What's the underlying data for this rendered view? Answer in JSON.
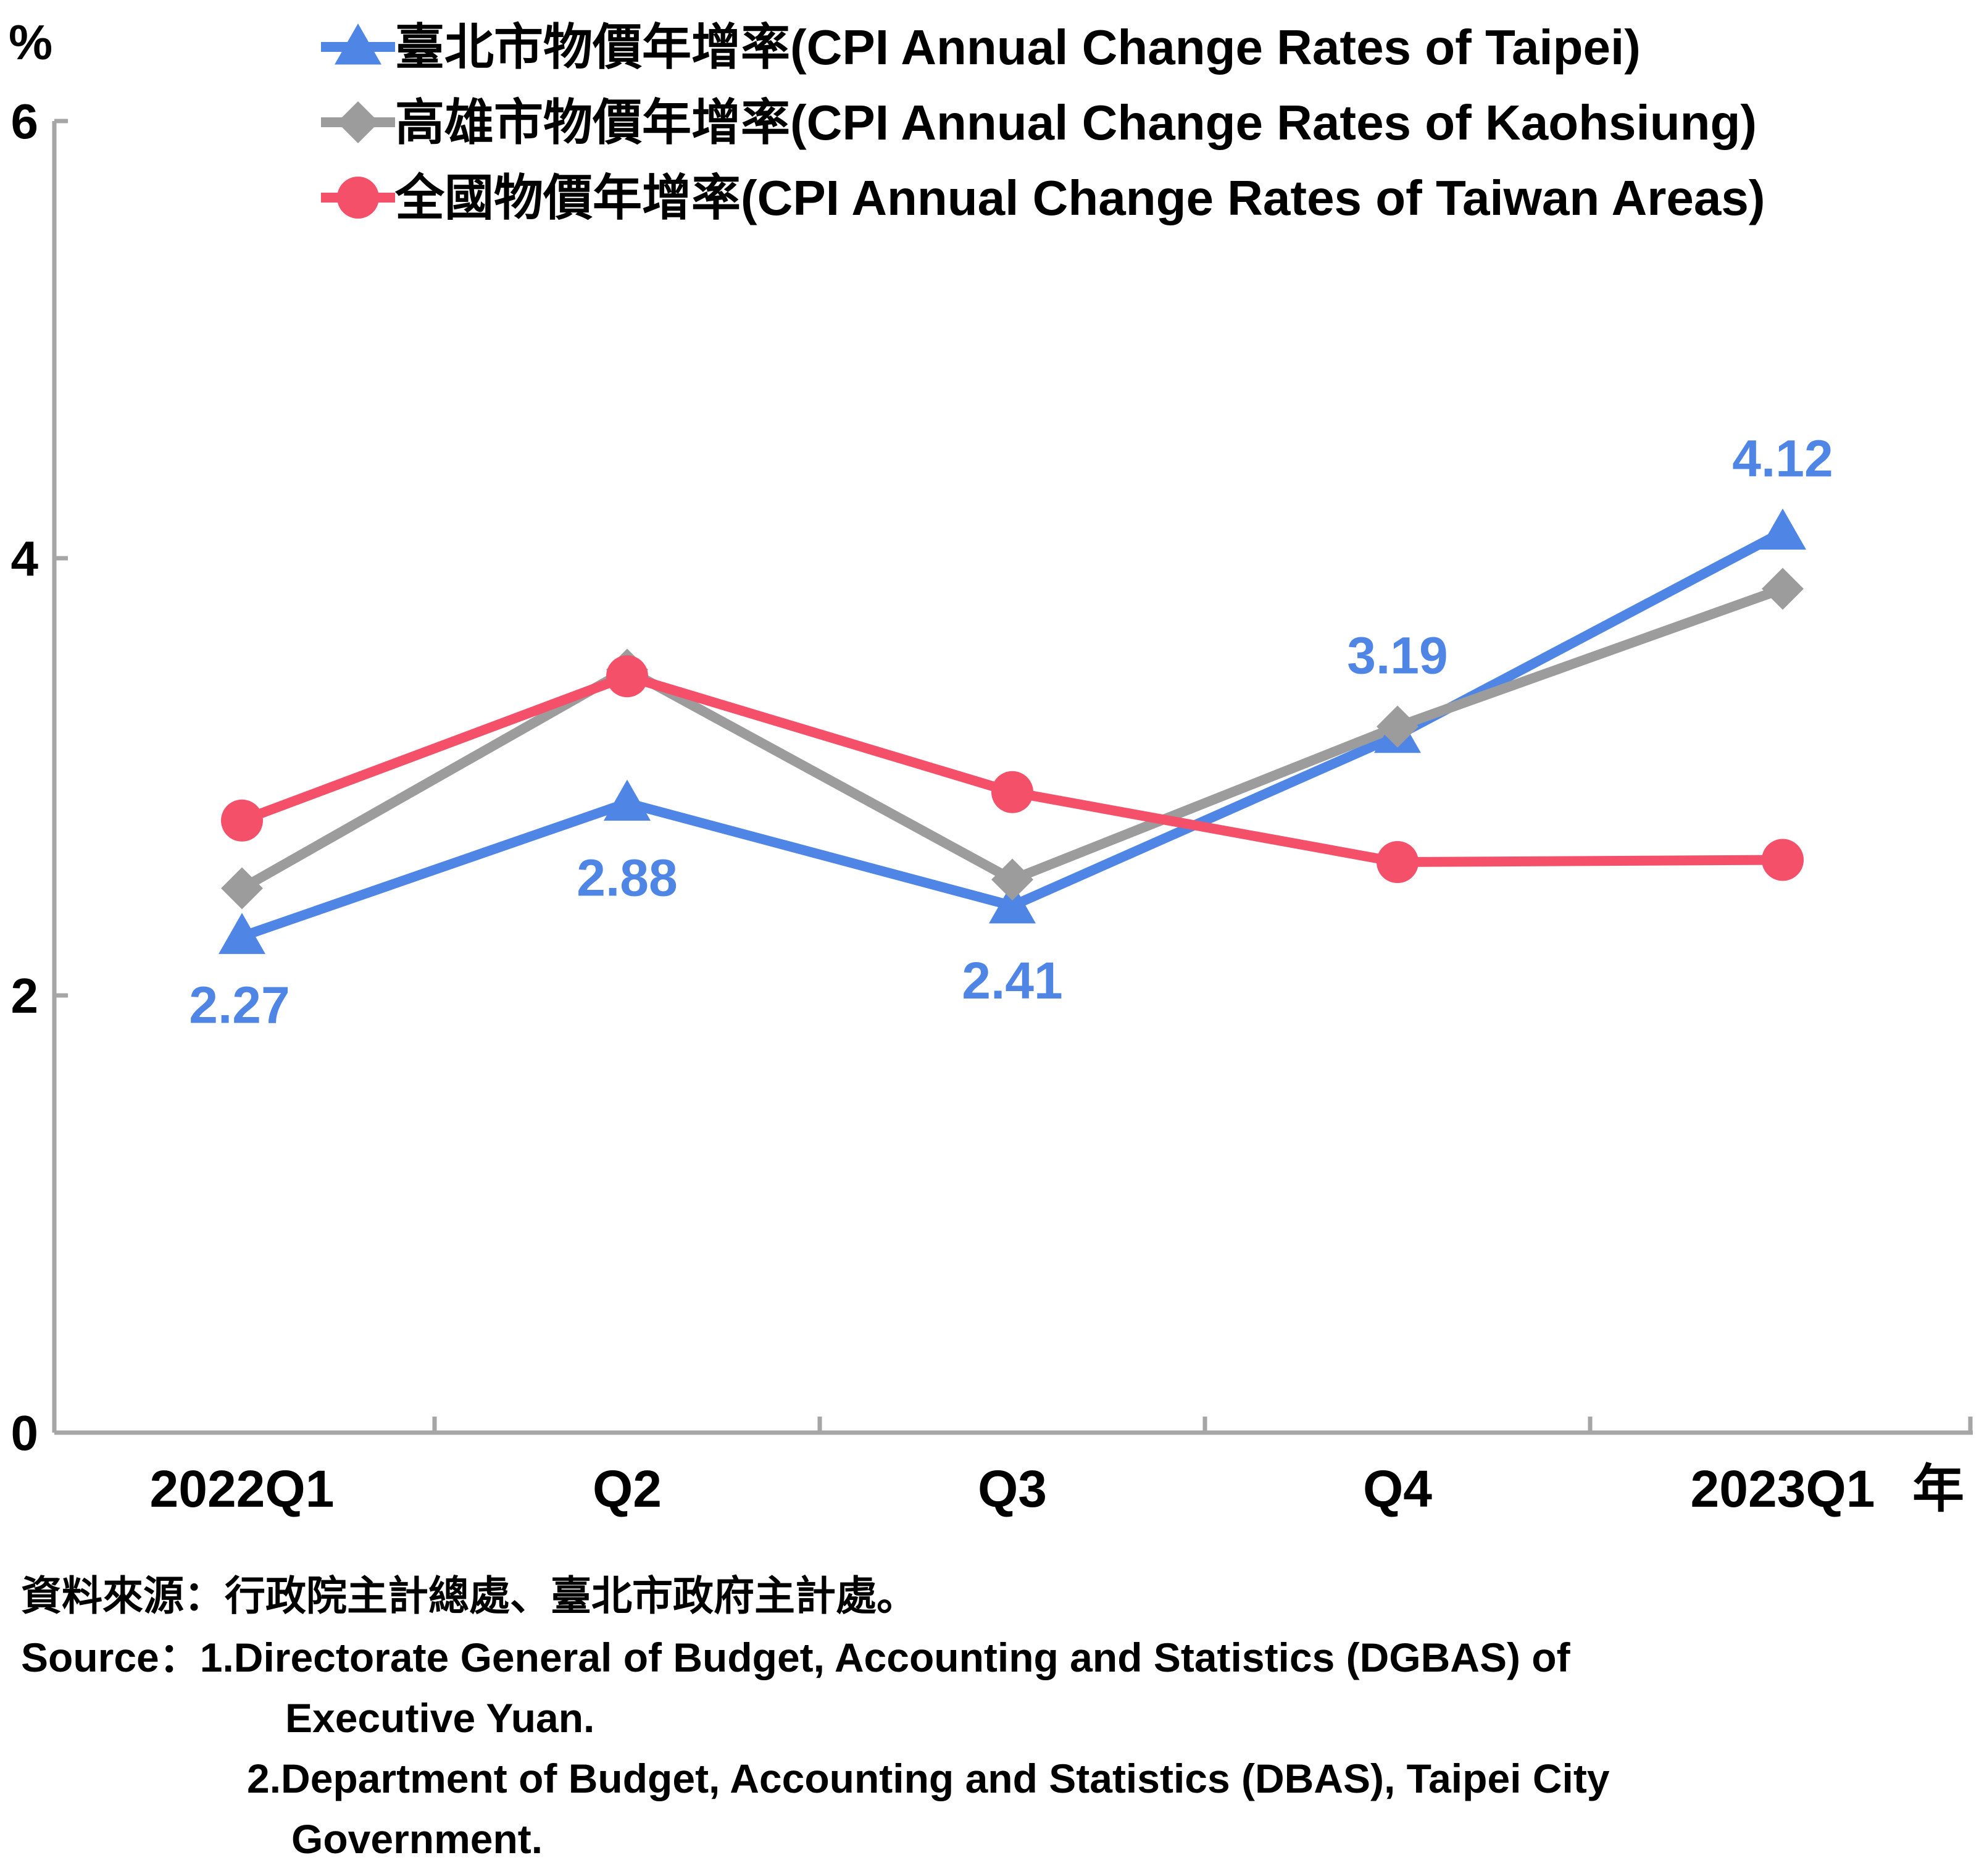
{
  "chart_data": {
    "type": "line",
    "unit_label": "%",
    "year_suffix": "年",
    "categories": [
      "2022Q1",
      "Q2",
      "Q3",
      "Q4",
      "2023Q1"
    ],
    "ylim": [
      0,
      6
    ],
    "yticks": [
      "0",
      "2",
      "4",
      "6"
    ],
    "legend_placement": "top",
    "series": [
      {
        "name": "臺北市物價年增率(CPI Annual Change Rates of Taipei)",
        "marker": "triangle",
        "color": "#4f86e6",
        "values": [
          2.27,
          2.88,
          2.41,
          3.19,
          4.12
        ],
        "labels": [
          "2.27",
          "2.88",
          "2.41",
          "3.19",
          "4.12"
        ]
      },
      {
        "name": "高雄市物價年增率(CPI Annual Change Rates of Kaohsiung)",
        "marker": "diamond",
        "color": "#9c9c9c",
        "values": [
          2.49,
          3.49,
          2.53,
          3.23,
          3.86
        ]
      },
      {
        "name": "全國物價年增率(CPI Annual Change Rates of Taiwan Areas)",
        "marker": "circle",
        "color": "#f5506a",
        "values": [
          2.8,
          3.46,
          2.93,
          2.61,
          2.62
        ]
      }
    ]
  },
  "source": {
    "zh": "資料來源：行政院主計總處、臺北市政府主計處。",
    "en_lines": [
      "Source：1.Directorate General of Budget, Accounting and Statistics (DGBAS) of",
      "Executive Yuan.",
      "2.Department of Budget, Accounting and Statistics (DBAS), Taipei City",
      "Government."
    ]
  }
}
